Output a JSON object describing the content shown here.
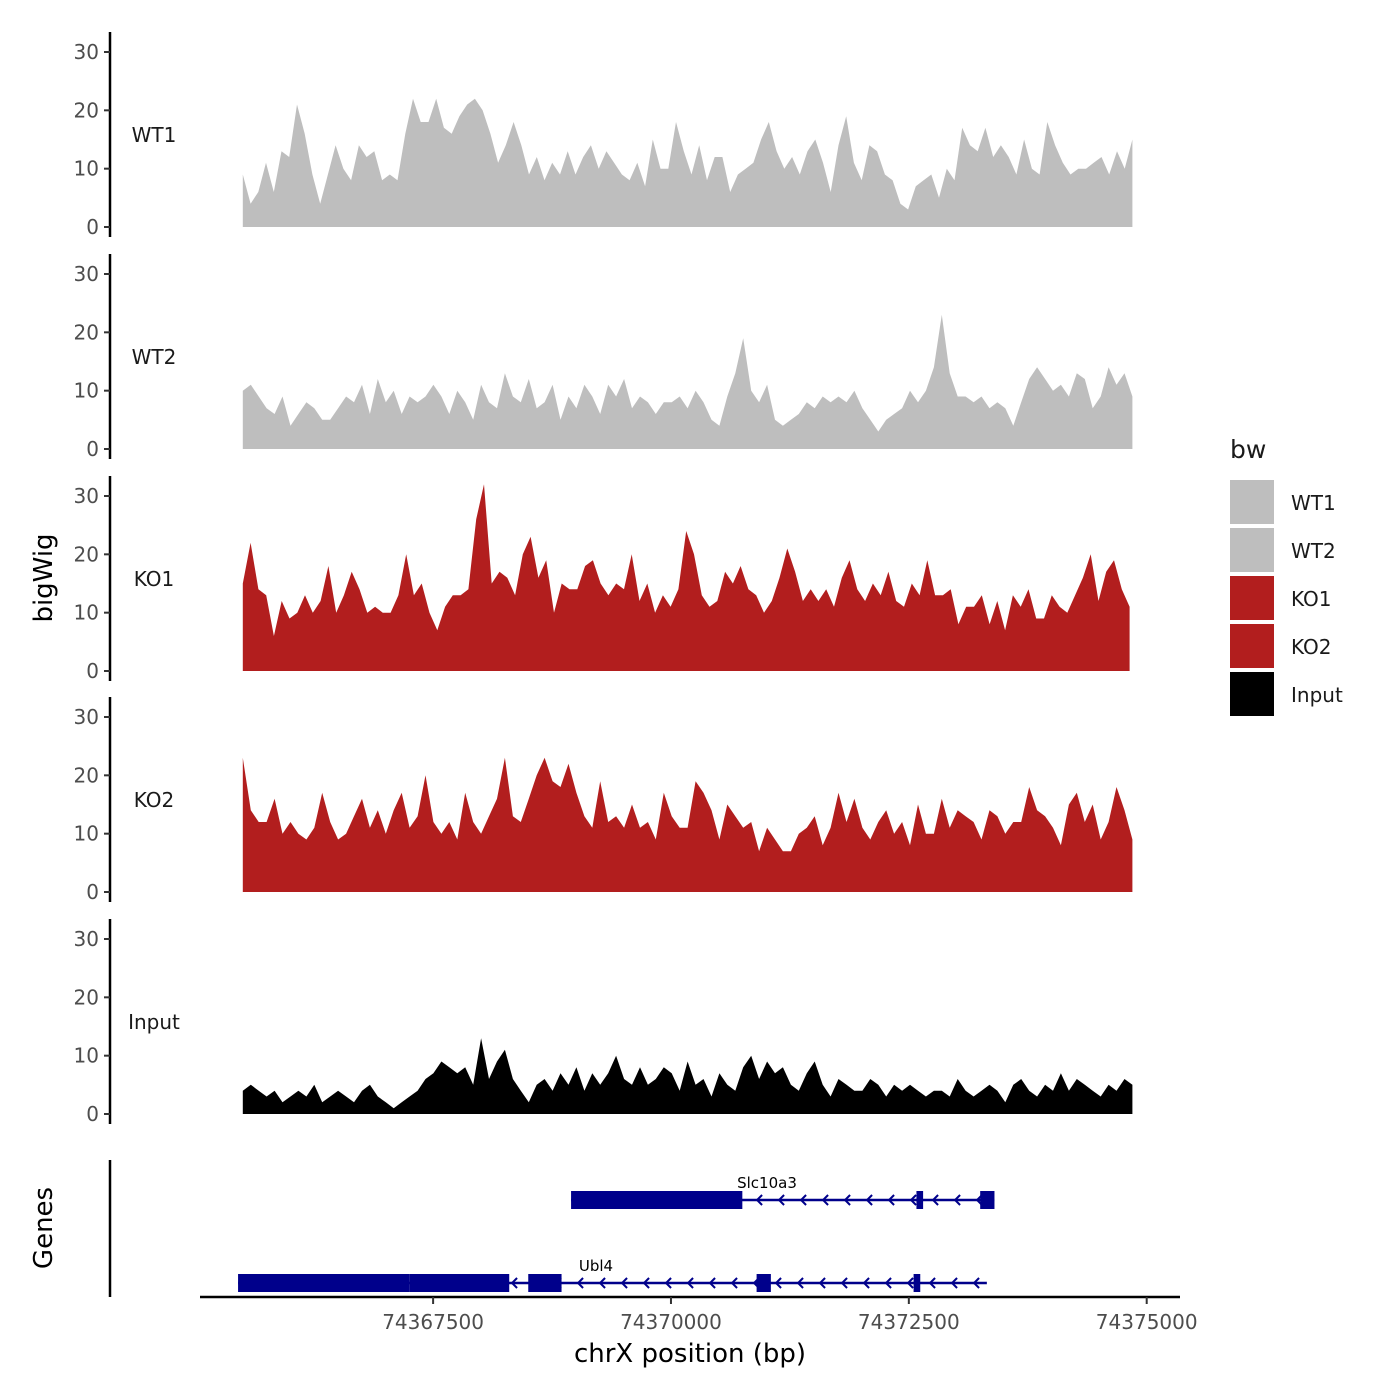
{
  "chart_data": {
    "type": "area",
    "ylabel": "bigWig",
    "genes_label": "Genes",
    "xlabel": "chrX position (bp)",
    "xlim": [
      74365050,
      74375350
    ],
    "ylim": [
      0,
      32
    ],
    "x_ticks": [
      74367500,
      74370000,
      74372500,
      74375000
    ],
    "y_ticks": [
      0,
      10,
      20,
      30
    ],
    "legend": {
      "title": "bw",
      "items": [
        {
          "label": "WT1",
          "color": "#BEBEBE"
        },
        {
          "label": "WT2",
          "color": "#BEBEBE"
        },
        {
          "label": "KO1",
          "color": "#B21E1E"
        },
        {
          "label": "KO2",
          "color": "#B21E1E"
        },
        {
          "label": "Input",
          "color": "#000000"
        }
      ]
    },
    "tracks": [
      {
        "name": "WT1",
        "color": "#BEBEBE",
        "x_start": 74365500,
        "x_end": 74374850,
        "values": [
          9,
          4,
          6,
          11,
          6,
          13,
          12,
          21,
          16,
          9,
          4,
          9,
          14,
          10,
          8,
          14,
          12,
          13,
          8,
          9,
          8,
          16,
          22,
          18,
          18,
          22,
          17,
          16,
          19,
          21,
          22,
          20,
          16,
          11,
          14,
          18,
          14,
          9,
          12,
          8,
          11,
          9,
          13,
          9,
          12,
          14,
          10,
          13,
          11,
          9,
          8,
          11,
          7,
          15,
          10,
          10,
          18,
          13,
          9,
          14,
          8,
          12,
          12,
          6,
          9,
          10,
          11,
          15,
          18,
          13,
          10,
          12,
          9,
          13,
          15,
          11,
          6,
          14,
          19,
          11,
          8,
          14,
          13,
          9,
          8,
          4,
          3,
          7,
          8,
          9,
          5,
          10,
          8,
          17,
          14,
          13,
          17,
          12,
          14,
          12,
          9,
          15,
          10,
          9,
          18,
          14,
          11,
          9,
          10,
          10,
          11,
          12,
          9,
          13,
          10,
          15
        ],
        "alt_label": "WT1 track"
      },
      {
        "name": "WT2",
        "color": "#BEBEBE",
        "x_start": 74365500,
        "x_end": 74374850,
        "values": [
          10,
          11,
          9,
          7,
          6,
          9,
          4,
          6,
          8,
          7,
          5,
          5,
          7,
          9,
          8,
          11,
          6,
          12,
          8,
          10,
          6,
          9,
          8,
          9,
          11,
          9,
          6,
          10,
          8,
          5,
          11,
          8,
          7,
          13,
          9,
          8,
          12,
          7,
          8,
          11,
          5,
          9,
          7,
          11,
          9,
          6,
          11,
          9,
          12,
          7,
          9,
          8,
          6,
          8,
          8,
          9,
          7,
          10,
          8,
          5,
          4,
          9,
          13,
          19,
          10,
          8,
          11,
          5,
          4,
          5,
          6,
          8,
          7,
          9,
          8,
          9,
          8,
          10,
          7,
          5,
          3,
          5,
          6,
          7,
          10,
          8,
          10,
          14,
          23,
          13,
          9,
          9,
          8,
          9,
          7,
          8,
          7,
          4,
          8,
          12,
          14,
          12,
          10,
          11,
          9,
          13,
          12,
          7,
          9,
          14,
          11,
          13,
          9
        ],
        "alt_label": "WT2 track"
      },
      {
        "name": "KO1",
        "color": "#B21E1E",
        "x_start": 74365500,
        "x_end": 74374820,
        "values": [
          15,
          22,
          14,
          13,
          6,
          12,
          9,
          10,
          13,
          10,
          12,
          18,
          10,
          13,
          17,
          14,
          10,
          11,
          10,
          10,
          13,
          20,
          13,
          15,
          10,
          7,
          11,
          13,
          13,
          14,
          26,
          32,
          15,
          17,
          16,
          13,
          20,
          23,
          16,
          19,
          10,
          15,
          14,
          14,
          18,
          19,
          15,
          13,
          15,
          14,
          20,
          12,
          15,
          10,
          13,
          11,
          14,
          24,
          20,
          13,
          11,
          12,
          17,
          15,
          18,
          14,
          13,
          10,
          12,
          16,
          21,
          17,
          12,
          14,
          12,
          14,
          11,
          16,
          19,
          14,
          12,
          15,
          13,
          17,
          12,
          11,
          15,
          13,
          19,
          13,
          13,
          14,
          8,
          11,
          11,
          13,
          8,
          12,
          7,
          13,
          11,
          14,
          9,
          9,
          13,
          11,
          10,
          13,
          16,
          20,
          12,
          17,
          19,
          14,
          11
        ],
        "alt_label": "KO1 track"
      },
      {
        "name": "KO2",
        "color": "#B21E1E",
        "x_start": 74365500,
        "x_end": 74374850,
        "values": [
          23,
          14,
          12,
          12,
          16,
          10,
          12,
          10,
          9,
          11,
          17,
          12,
          9,
          10,
          13,
          16,
          11,
          14,
          10,
          14,
          17,
          11,
          13,
          20,
          12,
          10,
          12,
          9,
          17,
          12,
          10,
          13,
          16,
          23,
          13,
          12,
          16,
          20,
          23,
          19,
          18,
          22,
          17,
          13,
          11,
          19,
          12,
          13,
          11,
          15,
          11,
          12,
          9,
          17,
          13,
          11,
          11,
          19,
          17,
          14,
          9,
          15,
          13,
          11,
          12,
          7,
          11,
          9,
          7,
          7,
          10,
          11,
          13,
          8,
          11,
          17,
          12,
          16,
          11,
          9,
          12,
          14,
          10,
          12,
          8,
          15,
          10,
          10,
          16,
          11,
          14,
          13,
          12,
          9,
          14,
          13,
          10,
          12,
          12,
          18,
          14,
          13,
          11,
          8,
          15,
          17,
          12,
          15,
          9,
          12,
          18,
          14,
          9
        ],
        "alt_label": "KO2 track"
      },
      {
        "name": "Input",
        "color": "#000000",
        "x_start": 74365500,
        "x_end": 74374850,
        "values": [
          4,
          5,
          4,
          3,
          4,
          2,
          3,
          4,
          3,
          5,
          2,
          3,
          4,
          3,
          2,
          4,
          5,
          3,
          2,
          1,
          2,
          3,
          4,
          6,
          7,
          9,
          8,
          7,
          8,
          5,
          13,
          6,
          9,
          11,
          6,
          4,
          2,
          5,
          6,
          4,
          7,
          5,
          8,
          4,
          7,
          5,
          7,
          10,
          6,
          5,
          8,
          5,
          6,
          8,
          7,
          4,
          9,
          5,
          6,
          3,
          7,
          5,
          4,
          8,
          10,
          6,
          9,
          7,
          8,
          5,
          4,
          7,
          9,
          5,
          3,
          6,
          5,
          4,
          4,
          6,
          5,
          3,
          5,
          4,
          5,
          4,
          3,
          4,
          4,
          3,
          6,
          4,
          3,
          4,
          5,
          4,
          2,
          5,
          6,
          4,
          3,
          5,
          4,
          7,
          4,
          6,
          5,
          4,
          3,
          5,
          4,
          6,
          5
        ],
        "alt_label": "Input track"
      }
    ],
    "genes": [
      {
        "name": "Slc10a3",
        "strand": "-",
        "color": "#00008B",
        "row": 1,
        "start": 74368950,
        "end": 74373400,
        "exons": [
          [
            74368950,
            74370750
          ],
          [
            74372580,
            74372650
          ],
          [
            74373250,
            74373400
          ]
        ]
      },
      {
        "name": "Ubl4",
        "strand": "-",
        "color": "#00008B",
        "row": 2,
        "start": 74365450,
        "end": 74373320,
        "exons": [
          [
            74365450,
            74367250
          ],
          [
            74367250,
            74368300
          ],
          [
            74368500,
            74368850
          ],
          [
            74370900,
            74371050
          ],
          [
            74372550,
            74372620
          ]
        ]
      }
    ]
  }
}
